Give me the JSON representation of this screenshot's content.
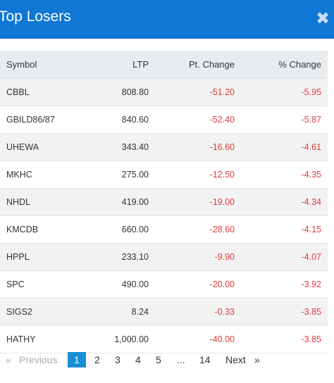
{
  "dialog": {
    "title": "Top Losers",
    "close_glyph": "✖"
  },
  "table": {
    "headers": [
      "Symbol",
      "LTP",
      "Pt. Change",
      "% Change"
    ],
    "rows": [
      {
        "symbol": "CBBL",
        "ltp": "808.80",
        "pt": "-51.20",
        "pct": "-5.95"
      },
      {
        "symbol": "GBILD86/87",
        "ltp": "840.60",
        "pt": "-52.40",
        "pct": "-5.87"
      },
      {
        "symbol": "UHEWA",
        "ltp": "343.40",
        "pt": "-16.60",
        "pct": "-4.61"
      },
      {
        "symbol": "MKHC",
        "ltp": "275.00",
        "pt": "-12.50",
        "pct": "-4.35"
      },
      {
        "symbol": "NHDL",
        "ltp": "419.00",
        "pt": "-19.00",
        "pct": "-4.34"
      },
      {
        "symbol": "KMCDB",
        "ltp": "660.00",
        "pt": "-28.60",
        "pct": "-4.15"
      },
      {
        "symbol": "HPPL",
        "ltp": "233.10",
        "pt": "-9.90",
        "pct": "-4.07"
      },
      {
        "symbol": "SPC",
        "ltp": "490.00",
        "pt": "-20.00",
        "pct": "-3.92"
      },
      {
        "symbol": "SIGS2",
        "ltp": "8.24",
        "pt": "-0.33",
        "pct": "-3.85"
      },
      {
        "symbol": "HATHY",
        "ltp": "1,000.00",
        "pt": "-40.00",
        "pct": "-3.85"
      }
    ]
  },
  "pagination": {
    "prev_arrow": "«",
    "prev_label": "Previous",
    "pages": [
      "1",
      "2",
      "3",
      "4",
      "5",
      "...",
      "14"
    ],
    "active_page": "1",
    "next_label": "Next",
    "next_arrow": "»"
  },
  "colors": {
    "header_bg": "#0f78d4",
    "negative": "#e33b3b",
    "active_page": "#1a8fd8"
  }
}
